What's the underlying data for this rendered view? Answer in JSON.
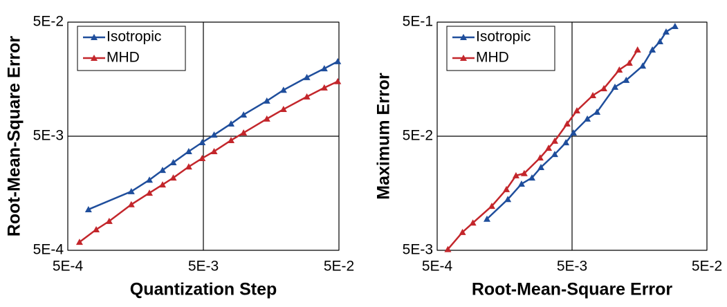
{
  "chart_data": [
    {
      "type": "line",
      "xlabel": "Quantization Step",
      "ylabel": "Root-Mean-Square Error",
      "xscale": "log",
      "yscale": "log",
      "grid": true,
      "legend": "upper left",
      "xlim": [
        0.0005,
        0.05
      ],
      "ylim": [
        0.0005,
        0.05
      ],
      "xticks": [
        {
          "value": 0.0005,
          "label": "5E-4"
        },
        {
          "value": 0.005,
          "label": "5E-3"
        },
        {
          "value": 0.05,
          "label": "5E-2"
        }
      ],
      "yticks": [
        {
          "value": 0.0005,
          "label": "5E-4"
        },
        {
          "value": 0.005,
          "label": "5E-3"
        },
        {
          "value": 0.05,
          "label": "5E-2"
        }
      ],
      "series": [
        {
          "name": "Isotropic",
          "color": "#1f4e9c",
          "x": [
            0.00071,
            0.00147,
            0.002,
            0.0025,
            0.003,
            0.0039,
            0.0049,
            0.006,
            0.008,
            0.0099,
            0.0147,
            0.0195,
            0.029,
            0.039,
            0.049
          ],
          "values": [
            0.00114,
            0.00164,
            0.00207,
            0.00252,
            0.00294,
            0.00368,
            0.00441,
            0.00514,
            0.00643,
            0.00771,
            0.0102,
            0.0127,
            0.0164,
            0.0196,
            0.0226
          ]
        },
        {
          "name": "MHD",
          "color": "#c3262b",
          "x": [
            0.00061,
            0.00081,
            0.00101,
            0.00147,
            0.002,
            0.0025,
            0.003,
            0.0039,
            0.0049,
            0.006,
            0.008,
            0.0099,
            0.0147,
            0.0195,
            0.029,
            0.039,
            0.049
          ],
          "values": [
            0.00059,
            0.00076,
            0.0009,
            0.00126,
            0.00159,
            0.00188,
            0.00216,
            0.0027,
            0.0032,
            0.00368,
            0.0046,
            0.00536,
            0.0071,
            0.00861,
            0.0111,
            0.0133,
            0.0151
          ]
        }
      ]
    },
    {
      "type": "line",
      "xlabel": "Root-Mean-Square Error",
      "ylabel": "Maximum Error",
      "xscale": "log",
      "yscale": "log",
      "grid": true,
      "legend": "upper left",
      "xlim": [
        0.0005,
        0.05
      ],
      "ylim": [
        0.005,
        0.5
      ],
      "xticks": [
        {
          "value": 0.0005,
          "label": "5E-4"
        },
        {
          "value": 0.005,
          "label": "5E-3"
        },
        {
          "value": 0.05,
          "label": "5E-2"
        }
      ],
      "yticks": [
        {
          "value": 0.005,
          "label": "5E-3"
        },
        {
          "value": 0.05,
          "label": "5E-2"
        },
        {
          "value": 0.5,
          "label": "5E-1"
        }
      ],
      "series": [
        {
          "name": "Isotropic",
          "color": "#1f4e9c",
          "x": [
            0.00117,
            0.00167,
            0.00211,
            0.00252,
            0.00294,
            0.00372,
            0.0045,
            0.00512,
            0.00649,
            0.00766,
            0.0104,
            0.0126,
            0.0167,
            0.0197,
            0.0224,
            0.0249,
            0.029
          ],
          "values": [
            0.0094,
            0.014,
            0.0191,
            0.0216,
            0.0267,
            0.0347,
            0.044,
            0.0536,
            0.071,
            0.0815,
            0.135,
            0.155,
            0.207,
            0.286,
            0.338,
            0.411,
            0.46
          ]
        },
        {
          "name": "MHD",
          "color": "#c3262b",
          "x": [
            0.0006,
            0.00077,
            0.00092,
            0.00127,
            0.00163,
            0.00192,
            0.00221,
            0.0029,
            0.00335,
            0.00372,
            0.0046,
            0.00543,
            0.00713,
            0.00861,
            0.0112,
            0.0133,
            0.0153
          ],
          "values": [
            0.0051,
            0.0072,
            0.0087,
            0.0122,
            0.0171,
            0.0226,
            0.0236,
            0.0324,
            0.0394,
            0.0454,
            0.0643,
            0.0838,
            0.114,
            0.131,
            0.191,
            0.219,
            0.286
          ]
        }
      ]
    }
  ]
}
